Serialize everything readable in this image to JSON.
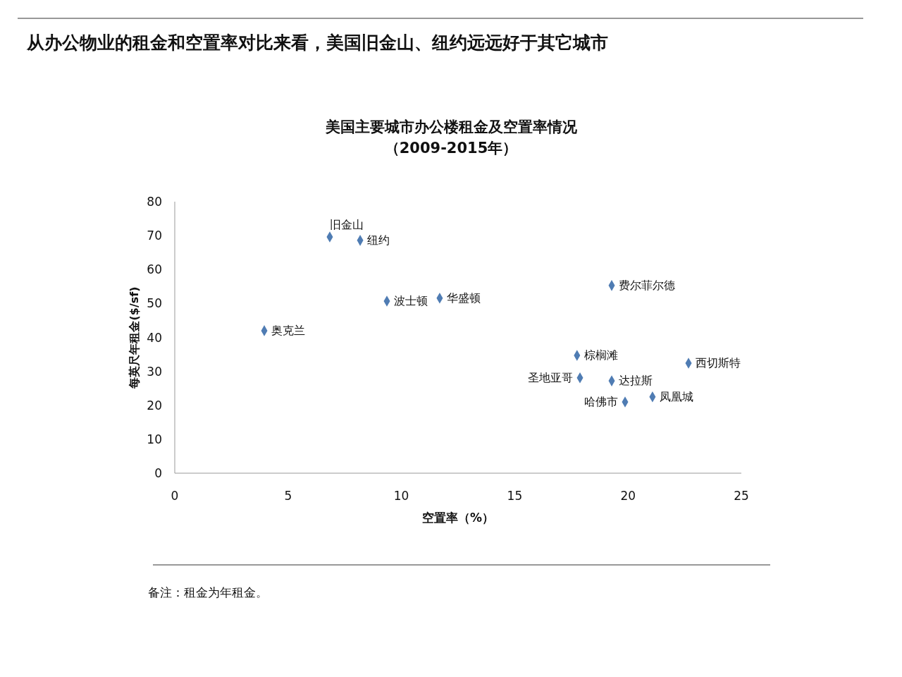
{
  "chart_data": {
    "type": "scatter",
    "title": "从办公物业的租金和空置率对比来看，美国旧金山、纽约远远好于其它城市",
    "subtitle": "美国主要城市办公楼租金及空置率情况（2009-2015年）",
    "xlabel": "空置率（%）",
    "ylabel": "每英尺年租金($/sf)",
    "x": [
      3.95,
      6.84,
      8.18,
      9.36,
      11.69,
      19.28,
      17.75,
      17.88,
      19.28,
      19.87,
      21.08,
      22.67
    ],
    "values": [
      42.0,
      69.6,
      68.6,
      50.7,
      51.6,
      55.3,
      34.7,
      28.1,
      27.2,
      21.0,
      22.5,
      32.4
    ],
    "color": "#4f7cb3",
    "marker": "diamond",
    "grid": false,
    "xlim": [
      0,
      25
    ],
    "xticks": [
      0,
      5,
      10,
      15,
      20,
      25
    ],
    "ylim": [
      0,
      80
    ],
    "yticks": [
      0,
      10,
      20,
      30,
      40,
      50,
      60,
      70,
      80
    ],
    "annotations": [
      {
        "text": "奥克兰",
        "x": 3.95,
        "y": 42.0
      },
      {
        "text": "旧金山",
        "x": 6.84,
        "y": 69.6
      },
      {
        "text": "纽约",
        "x": 8.18,
        "y": 68.6
      },
      {
        "text": "波士顿",
        "x": 9.36,
        "y": 50.7
      },
      {
        "text": "华盛顿",
        "x": 11.69,
        "y": 51.6
      },
      {
        "text": "费尔菲尔德",
        "x": 19.28,
        "y": 55.3
      },
      {
        "text": "棕榈滩",
        "x": 17.75,
        "y": 34.7
      },
      {
        "text": "圣地亚哥",
        "x": 17.88,
        "y": 28.1
      },
      {
        "text": "达拉斯",
        "x": 19.28,
        "y": 27.2
      },
      {
        "text": "哈佛市",
        "x": 19.87,
        "y": 21.0
      },
      {
        "text": "凤凰城",
        "x": 21.08,
        "y": 22.5
      },
      {
        "text": "西切斯特",
        "x": 22.67,
        "y": 32.4
      },
      "备注：租金为年租金。"
    ]
  }
}
